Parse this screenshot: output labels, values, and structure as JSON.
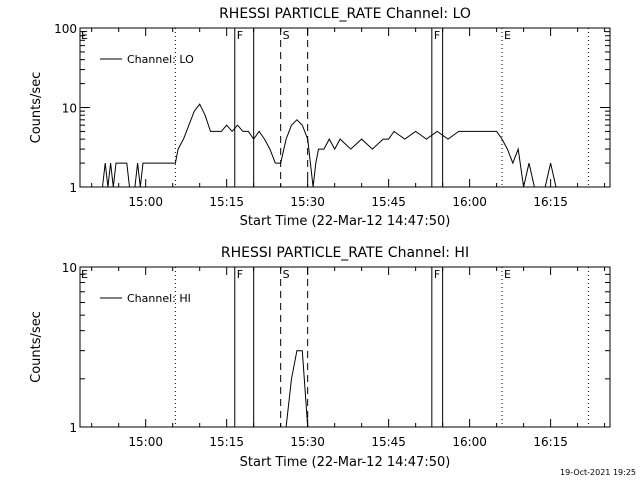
{
  "footer": {
    "timestamp": "19-Oct-2021 19:25"
  },
  "chart_data": [
    {
      "type": "line",
      "title": "RHESSI PARTICLE_RATE Channel: LO",
      "xlabel": "Start Time (22-Mar-12 14:47:50)",
      "ylabel": "Counts/sec",
      "y_scale": "log",
      "ylim": [
        1,
        100
      ],
      "y_ticks": [
        1,
        10,
        100
      ],
      "y_tick_labels": [
        "1",
        "10",
        "100"
      ],
      "xlim": [
        "14:47:50",
        "16:26:00"
      ],
      "x_ticks": [
        "15:00",
        "15:15",
        "15:30",
        "15:45",
        "16:00",
        "16:15"
      ],
      "legend": {
        "entries": [
          "Channel: LO"
        ],
        "placement": "top-left"
      },
      "markers": [
        {
          "label": "E",
          "time": "14:47:50",
          "style": "none"
        },
        {
          "label": "",
          "time": "15:05:30",
          "style": "dotted"
        },
        {
          "label": "F",
          "time": "15:16:30",
          "style": "solid"
        },
        {
          "label": "",
          "time": "15:20:00",
          "style": "solid"
        },
        {
          "label": "S",
          "time": "15:25:00",
          "style": "dashed"
        },
        {
          "label": "",
          "time": "15:30:00",
          "style": "dashed"
        },
        {
          "label": "F",
          "time": "15:53:00",
          "style": "solid"
        },
        {
          "label": "",
          "time": "15:55:00",
          "style": "solid"
        },
        {
          "label": "E",
          "time": "16:06:00",
          "style": "dotted"
        },
        {
          "label": "",
          "time": "16:22:00",
          "style": "dotted"
        }
      ],
      "series": [
        {
          "name": "Channel: LO",
          "points": [
            [
              "14:52:00",
              1
            ],
            [
              "14:52:30",
              2
            ],
            [
              "14:53:00",
              1
            ],
            [
              "14:53:30",
              2
            ],
            [
              "14:54:00",
              1
            ],
            [
              "14:54:30",
              2
            ],
            [
              "14:56:30",
              2
            ],
            [
              "14:57:00",
              1
            ],
            [
              "14:58:00",
              1
            ],
            [
              "14:58:30",
              2
            ],
            [
              "14:59:00",
              1
            ],
            [
              "14:59:30",
              2
            ],
            [
              "15:00:00",
              2
            ],
            [
              "15:05:30",
              2
            ],
            [
              "15:06:00",
              3
            ],
            [
              "15:07:00",
              4
            ],
            [
              "15:08:00",
              6
            ],
            [
              "15:09:00",
              9
            ],
            [
              "15:10:00",
              11
            ],
            [
              "15:11:00",
              8
            ],
            [
              "15:12:00",
              5
            ],
            [
              "15:14:00",
              5
            ],
            [
              "15:15:00",
              6
            ],
            [
              "15:16:00",
              5
            ],
            [
              "15:17:00",
              6
            ],
            [
              "15:18:00",
              5
            ],
            [
              "15:19:00",
              5
            ],
            [
              "15:20:00",
              4
            ],
            [
              "15:21:00",
              5
            ],
            [
              "15:22:00",
              4
            ],
            [
              "15:23:00",
              3
            ],
            [
              "15:24:00",
              2
            ],
            [
              "15:25:00",
              2
            ],
            [
              "15:26:00",
              4
            ],
            [
              "15:27:00",
              6
            ],
            [
              "15:28:00",
              7
            ],
            [
              "15:29:00",
              6
            ],
            [
              "15:30:00",
              4
            ],
            [
              "15:30:30",
              2
            ],
            [
              "15:31:00",
              1
            ],
            [
              "15:31:30",
              2
            ],
            [
              "15:32:00",
              3
            ],
            [
              "15:33:00",
              3
            ],
            [
              "15:34:00",
              4
            ],
            [
              "15:35:00",
              3
            ],
            [
              "15:36:00",
              4
            ],
            [
              "15:38:00",
              3
            ],
            [
              "15:40:00",
              4
            ],
            [
              "15:42:00",
              3
            ],
            [
              "15:44:00",
              4
            ],
            [
              "15:45:00",
              4
            ],
            [
              "15:46:00",
              5
            ],
            [
              "15:48:00",
              4
            ],
            [
              "15:50:00",
              5
            ],
            [
              "15:52:00",
              4
            ],
            [
              "15:54:00",
              5
            ],
            [
              "15:56:00",
              4
            ],
            [
              "15:58:00",
              5
            ],
            [
              "16:00:00",
              5
            ],
            [
              "16:05:00",
              5
            ],
            [
              "16:06:00",
              4
            ],
            [
              "16:07:00",
              3
            ],
            [
              "16:08:00",
              2
            ],
            [
              "16:09:00",
              3
            ],
            [
              "16:10:00",
              1
            ],
            [
              "16:11:00",
              2
            ],
            [
              "16:12:00",
              1
            ],
            [
              "16:14:00",
              1
            ],
            [
              "16:15:00",
              2
            ],
            [
              "16:16:00",
              1
            ]
          ]
        }
      ]
    },
    {
      "type": "line",
      "title": "RHESSI PARTICLE_RATE Channel: HI",
      "xlabel": "Start Time (22-Mar-12 14:47:50)",
      "ylabel": "Counts/sec",
      "y_scale": "log",
      "ylim": [
        1,
        10
      ],
      "y_ticks": [
        1,
        10
      ],
      "y_tick_labels": [
        "1",
        "10"
      ],
      "xlim": [
        "14:47:50",
        "16:26:00"
      ],
      "x_ticks": [
        "15:00",
        "15:15",
        "15:30",
        "15:45",
        "16:00",
        "16:15"
      ],
      "legend": {
        "entries": [
          "Channel: HI"
        ],
        "placement": "top-left"
      },
      "markers": [
        {
          "label": "E",
          "time": "14:47:50",
          "style": "none"
        },
        {
          "label": "",
          "time": "15:05:30",
          "style": "dotted"
        },
        {
          "label": "F",
          "time": "15:16:30",
          "style": "solid"
        },
        {
          "label": "",
          "time": "15:20:00",
          "style": "solid"
        },
        {
          "label": "S",
          "time": "15:25:00",
          "style": "dashed"
        },
        {
          "label": "",
          "time": "15:30:00",
          "style": "dashed"
        },
        {
          "label": "F",
          "time": "15:53:00",
          "style": "solid"
        },
        {
          "label": "",
          "time": "15:55:00",
          "style": "solid"
        },
        {
          "label": "E",
          "time": "16:06:00",
          "style": "dotted"
        },
        {
          "label": "",
          "time": "16:22:00",
          "style": "dotted"
        }
      ],
      "series": [
        {
          "name": "Channel: HI",
          "points": [
            [
              "15:26:00",
              1
            ],
            [
              "15:27:00",
              2
            ],
            [
              "15:28:00",
              3
            ],
            [
              "15:29:00",
              3
            ],
            [
              "15:30:00",
              1
            ]
          ]
        }
      ]
    }
  ]
}
